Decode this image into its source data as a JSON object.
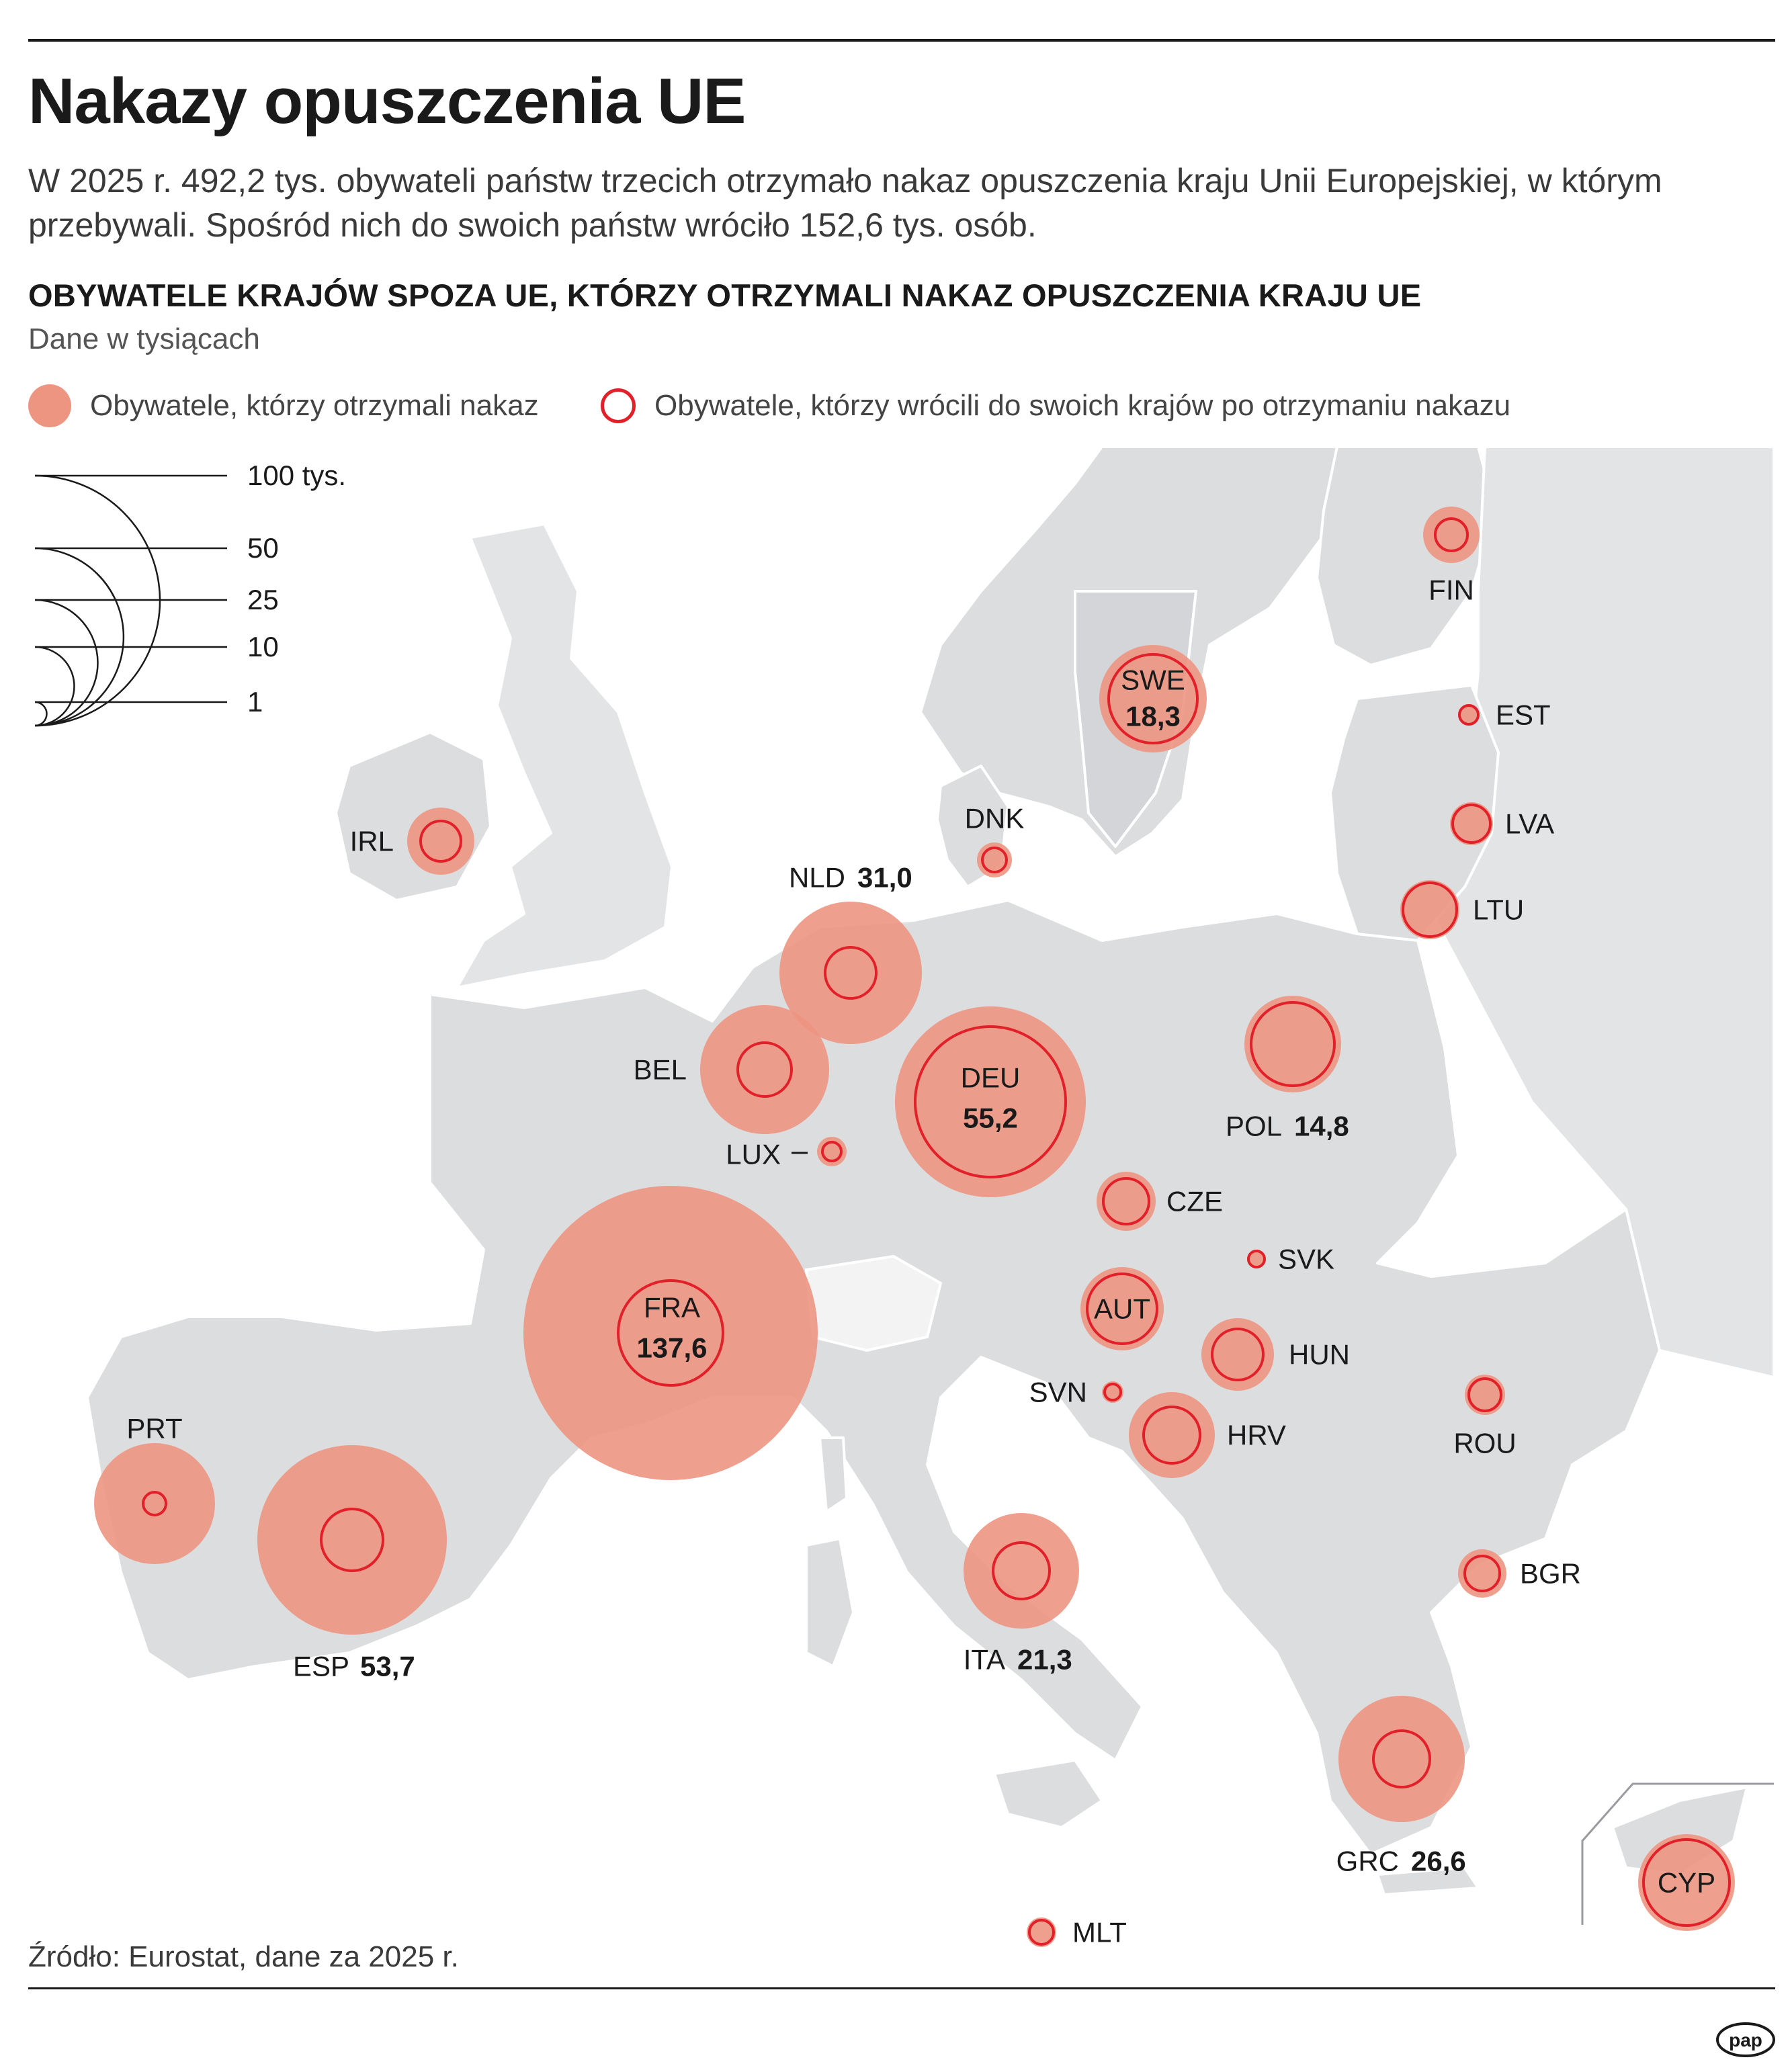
{
  "title": "Nakazy opuszczenia UE",
  "subtitle": "W 2025 r. 492,2 tys. obywateli państw trzecich otrzymało nakaz opuszczenia kraju Unii Europejskiej, w którym przebywali. Spośród nich do swoich państw wróciło 152,6 tys. osób.",
  "chart_heading": "OBYWATELE KRAJÓW SPOZA UE, KTÓRZY OTRZYMALI NAKAZ OPUSZCZENIA KRAJU UE",
  "units_note": "Dane w tysiącach",
  "legend": {
    "received": "Obywatele, którzy otrzymali nakaz",
    "returned": "Obywatele, którzy wrócili do swoich krajów po otrzymaniu nakazu"
  },
  "scale_legend": [
    "100 tys.",
    "50",
    "25",
    "10",
    "1"
  ],
  "colors": {
    "fill": "#ed9581",
    "ring": "#e2202a",
    "land": "#dcdddf",
    "sea": "#ffffff",
    "overlap": "#f08a96"
  },
  "chart_data": {
    "type": "proportional-symbol-map",
    "value_unit": "tys.",
    "countries": [
      {
        "code": "FRA",
        "received": 137.6,
        "label_value": "137,6"
      },
      {
        "code": "DEU",
        "received": 55.2,
        "label_value": "55,2"
      },
      {
        "code": "ESP",
        "received": 53.7,
        "label_value": "53,7"
      },
      {
        "code": "NLD",
        "received": 31.0,
        "label_value": "31,0"
      },
      {
        "code": "GRC",
        "received": 26.6,
        "label_value": "26,6"
      },
      {
        "code": "ITA",
        "received": 21.3,
        "label_value": "21,3"
      },
      {
        "code": "SWE",
        "received": 18.3,
        "label_value": "18,3"
      },
      {
        "code": "POL",
        "received": 14.8,
        "label_value": "14,8"
      },
      {
        "code": "BEL"
      },
      {
        "code": "PRT"
      },
      {
        "code": "IRL"
      },
      {
        "code": "FIN"
      },
      {
        "code": "EST"
      },
      {
        "code": "LVA"
      },
      {
        "code": "LTU"
      },
      {
        "code": "DNK"
      },
      {
        "code": "LUX"
      },
      {
        "code": "CZE"
      },
      {
        "code": "SVK"
      },
      {
        "code": "AUT"
      },
      {
        "code": "HUN"
      },
      {
        "code": "SVN"
      },
      {
        "code": "HRV"
      },
      {
        "code": "ROU"
      },
      {
        "code": "BGR"
      },
      {
        "code": "CYP"
      },
      {
        "code": "MLT"
      }
    ]
  },
  "source": "Źródło: Eurostat, dane za 2025 r.",
  "logo_text": "pap"
}
